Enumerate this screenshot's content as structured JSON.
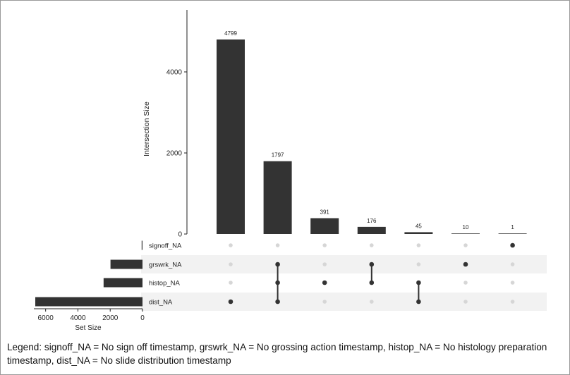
{
  "chart_data": {
    "type": "upset",
    "ylabel": "Intersection Size",
    "yticks": [
      0,
      2000,
      4000
    ],
    "ylim": [
      0,
      5000
    ],
    "intersections": [
      {
        "value": 4799,
        "label": "4799",
        "sets": [
          "dist_NA"
        ]
      },
      {
        "value": 1797,
        "label": "1797",
        "sets": [
          "grswrk_NA",
          "histop_NA",
          "dist_NA"
        ]
      },
      {
        "value": 391,
        "label": "391",
        "sets": [
          "histop_NA"
        ]
      },
      {
        "value": 176,
        "label": "176",
        "sets": [
          "grswrk_NA",
          "histop_NA"
        ]
      },
      {
        "value": 45,
        "label": "45",
        "sets": [
          "histop_NA",
          "dist_NA"
        ]
      },
      {
        "value": 10,
        "label": "10",
        "sets": [
          "grswrk_NA"
        ]
      },
      {
        "value": 1,
        "label": "1",
        "sets": [
          "signoff_NA"
        ]
      }
    ],
    "sets": [
      {
        "name": "signoff_NA",
        "size": 1
      },
      {
        "name": "grswrk_NA",
        "size": 1983
      },
      {
        "name": "histop_NA",
        "size": 2410
      },
      {
        "name": "dist_NA",
        "size": 6641
      }
    ],
    "set_size_label": "Set Size",
    "set_size_ticks": [
      6000,
      4000,
      2000,
      0
    ],
    "set_size_max": 6641,
    "colors": {
      "bar": "#333333",
      "dot_active": "#333333",
      "dot_inactive": "#d6d6d6",
      "band": "#f2f2f2"
    }
  },
  "legend": {
    "prefix": "Legend: ",
    "items": [
      {
        "key": "signoff_NA",
        "desc": " = No sign off timestamp"
      },
      {
        "key": "grswrk_NA",
        "desc": " = No grossing action timestamp"
      },
      {
        "key": "histop_NA",
        "desc": " = No histology preparation timestamp"
      },
      {
        "key": "dist_NA",
        "desc": " = No slide distribution timestamp"
      }
    ]
  }
}
